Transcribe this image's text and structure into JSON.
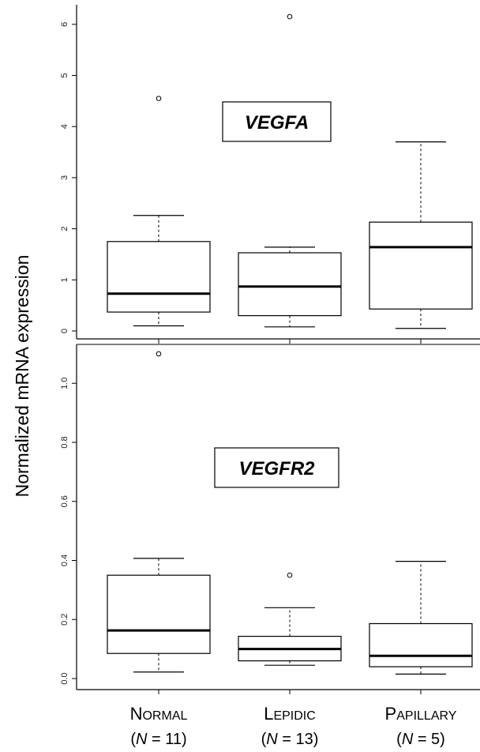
{
  "chart_data": {
    "type": "boxplot",
    "ylabel": "Normalized mRNA expression",
    "groups": [
      {
        "name": "Normal",
        "sc_first": "N",
        "sc_rest": "ORMAL",
        "n_prefix": "(",
        "n_italic": "N",
        "n_suffix": " = 11)"
      },
      {
        "name": "Lepidic",
        "sc_first": "L",
        "sc_rest": "EPIDIC",
        "n_prefix": "(",
        "n_italic": "N",
        "n_suffix": " = 13)"
      },
      {
        "name": "Papillary",
        "sc_first": "P",
        "sc_rest": "APILLARY",
        "n_prefix": "(",
        "n_italic": "N",
        "n_suffix": " = 5)"
      }
    ],
    "panels": [
      {
        "gene": "VEGFA",
        "ylim": [
          -0.1,
          6.3
        ],
        "yticks": [
          "0",
          "1",
          "2",
          "3",
          "4",
          "5",
          "6"
        ],
        "boxes": [
          {
            "group": "Normal",
            "whisker_low": 0.1,
            "q1": 0.37,
            "median": 0.73,
            "q3": 1.75,
            "whisker_high": 2.26,
            "outliers": [
              4.55
            ]
          },
          {
            "group": "Lepidic",
            "whisker_low": 0.08,
            "q1": 0.3,
            "median": 0.87,
            "q3": 1.53,
            "whisker_high": 1.64,
            "outliers": [
              6.15
            ]
          },
          {
            "group": "Papillary",
            "whisker_low": 0.05,
            "q1": 0.43,
            "median": 1.64,
            "q3": 2.13,
            "whisker_high": 3.7,
            "outliers": []
          }
        ]
      },
      {
        "gene": "VEGFR2",
        "ylim": [
          -0.01,
          1.13
        ],
        "yticks": [
          "0.0",
          "0.2",
          "0.4",
          "0.6",
          "0.8",
          "1.0"
        ],
        "boxes": [
          {
            "group": "Normal",
            "whisker_low": 0.022,
            "q1": 0.085,
            "median": 0.163,
            "q3": 0.35,
            "whisker_high": 0.407,
            "outliers": [
              1.1
            ]
          },
          {
            "group": "Lepidic",
            "whisker_low": 0.045,
            "q1": 0.06,
            "median": 0.1,
            "q3": 0.143,
            "whisker_high": 0.24,
            "outliers": [
              0.35
            ]
          },
          {
            "group": "Papillary",
            "whisker_low": 0.015,
            "q1": 0.04,
            "median": 0.077,
            "q3": 0.186,
            "whisker_high": 0.397,
            "outliers": []
          }
        ]
      }
    ]
  }
}
